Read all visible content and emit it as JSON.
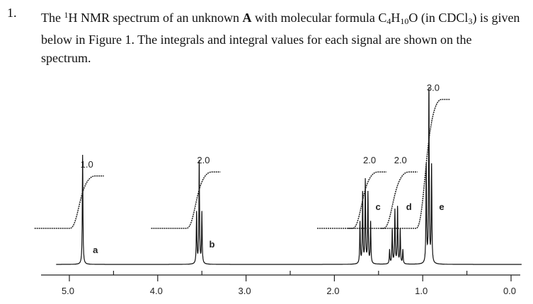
{
  "question": {
    "number": "1.",
    "text_parts": [
      "The ",
      "1",
      "H NMR spectrum of an unknown ",
      "A",
      " with molecular formula C",
      "4",
      "H",
      "10",
      "O (in CDCl",
      "3",
      ") is given below in Figure 1.  The integrals and integral values for each signal are shown on the spectrum."
    ]
  },
  "chart_data": {
    "type": "line",
    "xlim": [
      5.0,
      0.0
    ],
    "x_ticks": [
      "5.0",
      "4.0",
      "3.0",
      "2.0",
      "1.0",
      "0.0"
    ],
    "peaks": [
      {
        "label": "a",
        "shift": 4.85,
        "multiplicity": "singlet",
        "integral": "1.0",
        "lines": [
          {
            "offset": 0.0,
            "rel": 1.0
          }
        ]
      },
      {
        "label": "b",
        "shift": 3.53,
        "multiplicity": "triplet",
        "integral": "2.0",
        "lines": [
          {
            "offset": -0.03,
            "rel": 0.5
          },
          {
            "offset": 0.0,
            "rel": 1.0
          },
          {
            "offset": 0.03,
            "rel": 0.5
          }
        ]
      },
      {
        "label": "c",
        "shift": 1.65,
        "multiplicity": "pentet",
        "integral": "2.0",
        "lines": [
          {
            "offset": -0.06,
            "rel": 0.5
          },
          {
            "offset": -0.03,
            "rel": 0.85
          },
          {
            "offset": 0.0,
            "rel": 1.0
          },
          {
            "offset": 0.03,
            "rel": 0.85
          },
          {
            "offset": 0.06,
            "rel": 0.5
          }
        ]
      },
      {
        "label": "d",
        "shift": 1.3,
        "multiplicity": "sextet",
        "integral": "2.0",
        "lines": [
          {
            "offset": -0.075,
            "rel": 0.25
          },
          {
            "offset": -0.045,
            "rel": 0.6
          },
          {
            "offset": -0.015,
            "rel": 1.0
          },
          {
            "offset": 0.015,
            "rel": 0.95
          },
          {
            "offset": 0.045,
            "rel": 0.6
          },
          {
            "offset": 0.075,
            "rel": 0.25
          }
        ]
      },
      {
        "label": "e",
        "shift": 0.93,
        "multiplicity": "triplet",
        "integral": "3.0",
        "lines": [
          {
            "offset": -0.03,
            "rel": 0.55
          },
          {
            "offset": 0.0,
            "rel": 1.0
          },
          {
            "offset": 0.03,
            "rel": 0.55
          }
        ]
      }
    ]
  }
}
